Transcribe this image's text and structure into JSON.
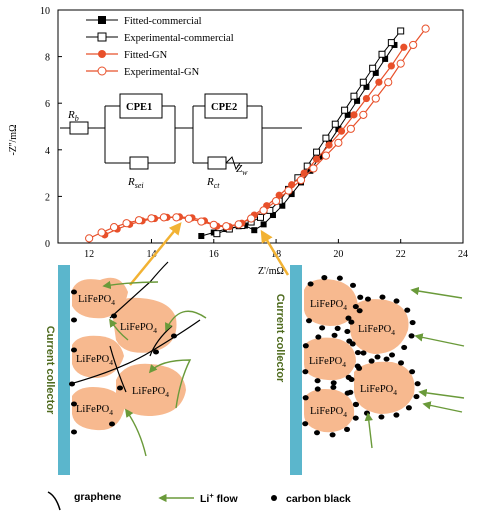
{
  "chart_data": {
    "type": "scatter",
    "xlabel": "Z'/mΩ",
    "ylabel": "-Z''/mΩ",
    "xlim": [
      11,
      24
    ],
    "ylim": [
      0,
      10
    ],
    "xticks": [
      "12",
      "14",
      "16",
      "18",
      "20",
      "22",
      "24"
    ],
    "yticks": [
      "0",
      "2",
      "4",
      "6",
      "8",
      "10"
    ],
    "legend_position": "top-left",
    "series": [
      {
        "name": "Fitted-commercial",
        "marker": "filled-square",
        "color": "#000000",
        "x": [
          15.6,
          16.0,
          16.4,
          16.8,
          17.0,
          17.3,
          17.6,
          17.9,
          18.2,
          18.5,
          18.8,
          19.1,
          19.4,
          19.7,
          20.0,
          20.3,
          20.6,
          20.9,
          21.2,
          21.5,
          21.8
        ],
        "y": [
          0.3,
          0.45,
          0.6,
          0.72,
          0.75,
          0.55,
          0.8,
          1.2,
          1.6,
          2.1,
          2.6,
          3.1,
          3.7,
          4.3,
          4.9,
          5.5,
          6.1,
          6.7,
          7.3,
          7.9,
          8.5
        ]
      },
      {
        "name": "Experimental-commercial",
        "marker": "open-square",
        "color": "#000000",
        "x": [
          16.1,
          16.5,
          16.9,
          17.2,
          17.5,
          17.8,
          18.1,
          18.4,
          18.7,
          19.0,
          19.3,
          19.6,
          19.9,
          20.2,
          20.5,
          20.8,
          21.1,
          21.4,
          21.7,
          22.0
        ],
        "y": [
          0.4,
          0.6,
          0.75,
          0.9,
          1.1,
          1.4,
          1.8,
          2.3,
          2.8,
          3.3,
          3.9,
          4.5,
          5.1,
          5.7,
          6.3,
          6.9,
          7.5,
          8.1,
          8.6,
          9.1
        ]
      },
      {
        "name": "Fitted-GN",
        "marker": "filled-circle",
        "color": "#e8502a",
        "x": [
          12.5,
          12.9,
          13.3,
          13.7,
          14.1,
          14.5,
          14.9,
          15.3,
          15.7,
          16.1,
          16.5,
          16.9,
          17.3,
          17.7,
          18.1,
          18.5,
          18.9,
          19.3,
          19.7,
          20.1,
          20.5,
          20.9,
          21.3,
          21.7,
          22.1
        ],
        "y": [
          0.35,
          0.6,
          0.8,
          0.95,
          1.05,
          1.1,
          1.12,
          1.08,
          0.95,
          0.72,
          0.7,
          0.85,
          1.2,
          1.6,
          2.05,
          2.5,
          3.0,
          3.6,
          4.2,
          4.8,
          5.5,
          6.2,
          6.9,
          7.6,
          8.4
        ]
      },
      {
        "name": "Experimental-GN",
        "marker": "open-circle",
        "color": "#e8502a",
        "x": [
          12.0,
          12.4,
          12.8,
          13.2,
          13.6,
          14.0,
          14.4,
          14.8,
          15.2,
          15.6,
          16.0,
          16.4,
          16.8,
          17.2,
          17.6,
          18.0,
          18.4,
          18.8,
          19.2,
          19.6,
          20.0,
          20.4,
          20.8,
          21.2,
          21.6,
          22.0,
          22.4,
          22.8
        ],
        "y": [
          0.2,
          0.45,
          0.68,
          0.85,
          0.98,
          1.06,
          1.1,
          1.1,
          1.04,
          0.92,
          0.78,
          0.72,
          0.8,
          1.05,
          1.4,
          1.8,
          2.25,
          2.7,
          3.2,
          3.75,
          4.3,
          4.9,
          5.5,
          6.2,
          6.9,
          7.7,
          8.5,
          9.2
        ]
      }
    ]
  },
  "circuit": {
    "rb": "R",
    "rb_sub": "b",
    "cpe1": "CPE1",
    "cpe2": "CPE2",
    "rsei": "R",
    "rsei_sub": "sei",
    "rct": "R",
    "rct_sub": "ct",
    "zw": "Z",
    "zw_sub": "w"
  },
  "left_panel": {
    "collector_label": "Current collector",
    "particles": [
      "LiFePO",
      "LiFePO",
      "LiFePO",
      "LiFePO",
      "LiFePO"
    ],
    "sub": "4"
  },
  "right_panel": {
    "collector_label": "Current collector",
    "particles": [
      "LiFePO",
      "LiFePO",
      "LiFePO",
      "LiFePO",
      "LiFePO"
    ],
    "sub": "4"
  },
  "bottom_legend": {
    "graphene": "graphene",
    "li_flow": "Li",
    "li_flow_sup": "+",
    "li_flow_rest": " flow",
    "carbon_black": "carbon black"
  },
  "colors": {
    "gn": "#e8502a",
    "particle": "#f7b98f",
    "collector": "#5bb6cc",
    "arrow_green": "#6a9a3a",
    "callout": "#f2b233",
    "label_green": "#4f6b1f"
  }
}
